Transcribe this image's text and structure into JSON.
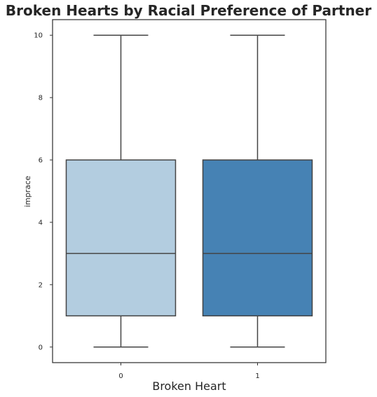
{
  "chart_data": {
    "type": "box",
    "title": "Broken Hearts by Racial Preference of Partner",
    "xlabel": "Broken Heart",
    "ylabel": "imprace",
    "categories": [
      "0",
      "1"
    ],
    "boxes": [
      {
        "category": "0",
        "whisker_low": 0,
        "q1": 1,
        "median": 3,
        "q3": 6,
        "whisker_high": 10,
        "color": "#b3cde0"
      },
      {
        "category": "1",
        "whisker_low": 0,
        "q1": 1,
        "median": 3,
        "q3": 6,
        "whisker_high": 10,
        "color": "#4682b4"
      }
    ],
    "yticks": [
      0,
      2,
      4,
      6,
      8,
      10
    ],
    "yticklabels": [
      "0",
      "2",
      "4",
      "6",
      "8",
      "10"
    ],
    "ylim": [
      -0.5,
      10.5
    ],
    "grid": false,
    "legend": "none",
    "line_color": "#444444"
  }
}
